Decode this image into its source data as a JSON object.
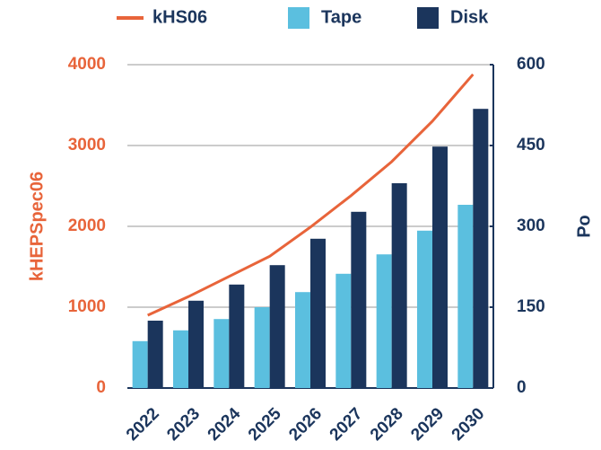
{
  "chart_data": {
    "type": "bar-line",
    "categories": [
      "2022",
      "2023",
      "2024",
      "2025",
      "2026",
      "2027",
      "2028",
      "2029",
      "2030"
    ],
    "series": [
      {
        "name": "kHS06",
        "type": "line",
        "axis": "y",
        "color": "#e8643a",
        "values": [
          900,
          1130,
          1380,
          1630,
          1990,
          2380,
          2800,
          3300,
          3880
        ]
      },
      {
        "name": "Tape",
        "type": "bar",
        "axis": "y2",
        "color": "#5bbfdf",
        "values": [
          87,
          107,
          128,
          150,
          178,
          212,
          248,
          292,
          340
        ]
      },
      {
        "name": "Disk",
        "type": "bar",
        "axis": "y2",
        "color": "#1b355c",
        "values": [
          125,
          162,
          192,
          228,
          277,
          327,
          380,
          448,
          518
        ]
      }
    ],
    "ylabel": "kHEPSpec06",
    "y2label": "Po",
    "ylim": [
      0,
      4000
    ],
    "yticks": [
      0,
      1000,
      2000,
      3000,
      4000
    ],
    "y2lim": [
      0,
      600
    ],
    "y2ticks": [
      0,
      150,
      300,
      450,
      600
    ],
    "grid": true,
    "legend": "top"
  }
}
